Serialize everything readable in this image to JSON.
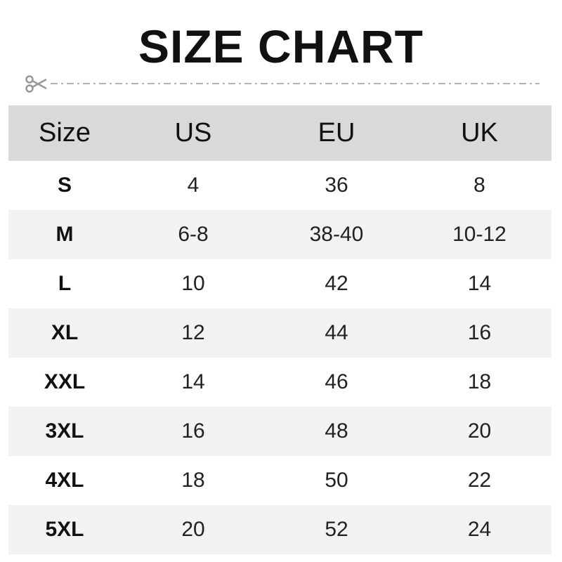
{
  "title": "SIZE CHART",
  "cut_icon": "scissors-icon",
  "colors": {
    "header_bg": "#d9d9d9",
    "alt_row_bg": "#f2f2f2",
    "cut_line": "#999999"
  },
  "table": {
    "headers": [
      "Size",
      "US",
      "EU",
      "UK"
    ],
    "rows": [
      [
        "S",
        "4",
        "36",
        "8"
      ],
      [
        "M",
        "6-8",
        "38-40",
        "10-12"
      ],
      [
        "L",
        "10",
        "42",
        "14"
      ],
      [
        "XL",
        "12",
        "44",
        "16"
      ],
      [
        "XXL",
        "14",
        "46",
        "18"
      ],
      [
        "3XL",
        "16",
        "48",
        "20"
      ],
      [
        "4XL",
        "18",
        "50",
        "22"
      ],
      [
        "5XL",
        "20",
        "52",
        "24"
      ]
    ]
  }
}
